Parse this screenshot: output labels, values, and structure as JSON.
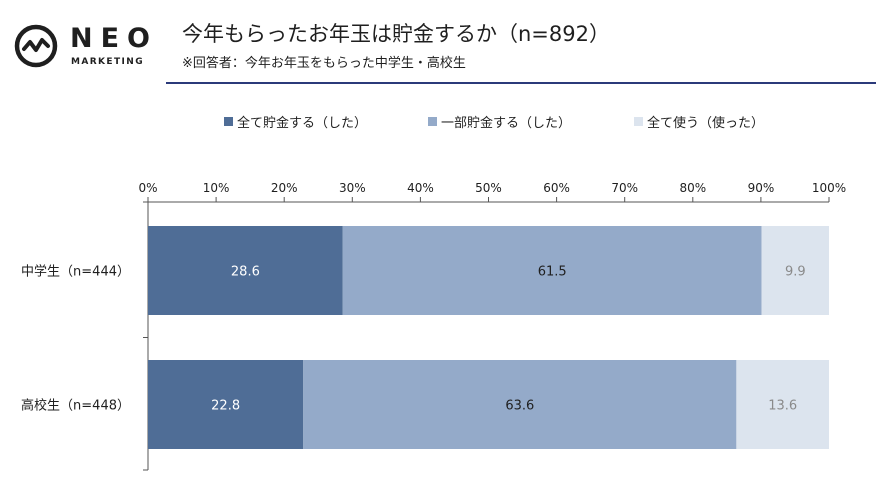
{
  "brand": {
    "name": "NEO",
    "sub": "MARKETING"
  },
  "title": "今年もらったお年玉は貯金するか（n=892）",
  "subtitle": "※回答者：今年お年玉をもらった中学生・高校生",
  "colors": {
    "accent_rule": "#2b3a7a",
    "series": [
      "#4f6d96",
      "#94aac9",
      "#dce4ee"
    ]
  },
  "legend": [
    {
      "label": "全て貯金する（した）"
    },
    {
      "label": "一部貯金する（した）"
    },
    {
      "label": "全て使う（使った）"
    }
  ],
  "chart_data": {
    "type": "bar",
    "orientation": "horizontal-stacked-100",
    "categories": [
      "中学生（n=444）",
      "高校生（n=448）"
    ],
    "series": [
      {
        "name": "全て貯金する（した）",
        "values": [
          28.6,
          22.8
        ]
      },
      {
        "name": "一部貯金する（した）",
        "values": [
          61.5,
          63.6
        ]
      },
      {
        "name": "全て使う（使った）",
        "values": [
          9.9,
          13.6
        ]
      }
    ],
    "x_ticks": [
      "0%",
      "10%",
      "20%",
      "30%",
      "40%",
      "50%",
      "60%",
      "70%",
      "80%",
      "90%",
      "100%"
    ],
    "xlim": [
      0,
      100
    ],
    "label_colors": [
      "#ffffff",
      "#1f1f1f",
      "#8a8a8a"
    ],
    "legend_position": "top",
    "grid": false
  }
}
